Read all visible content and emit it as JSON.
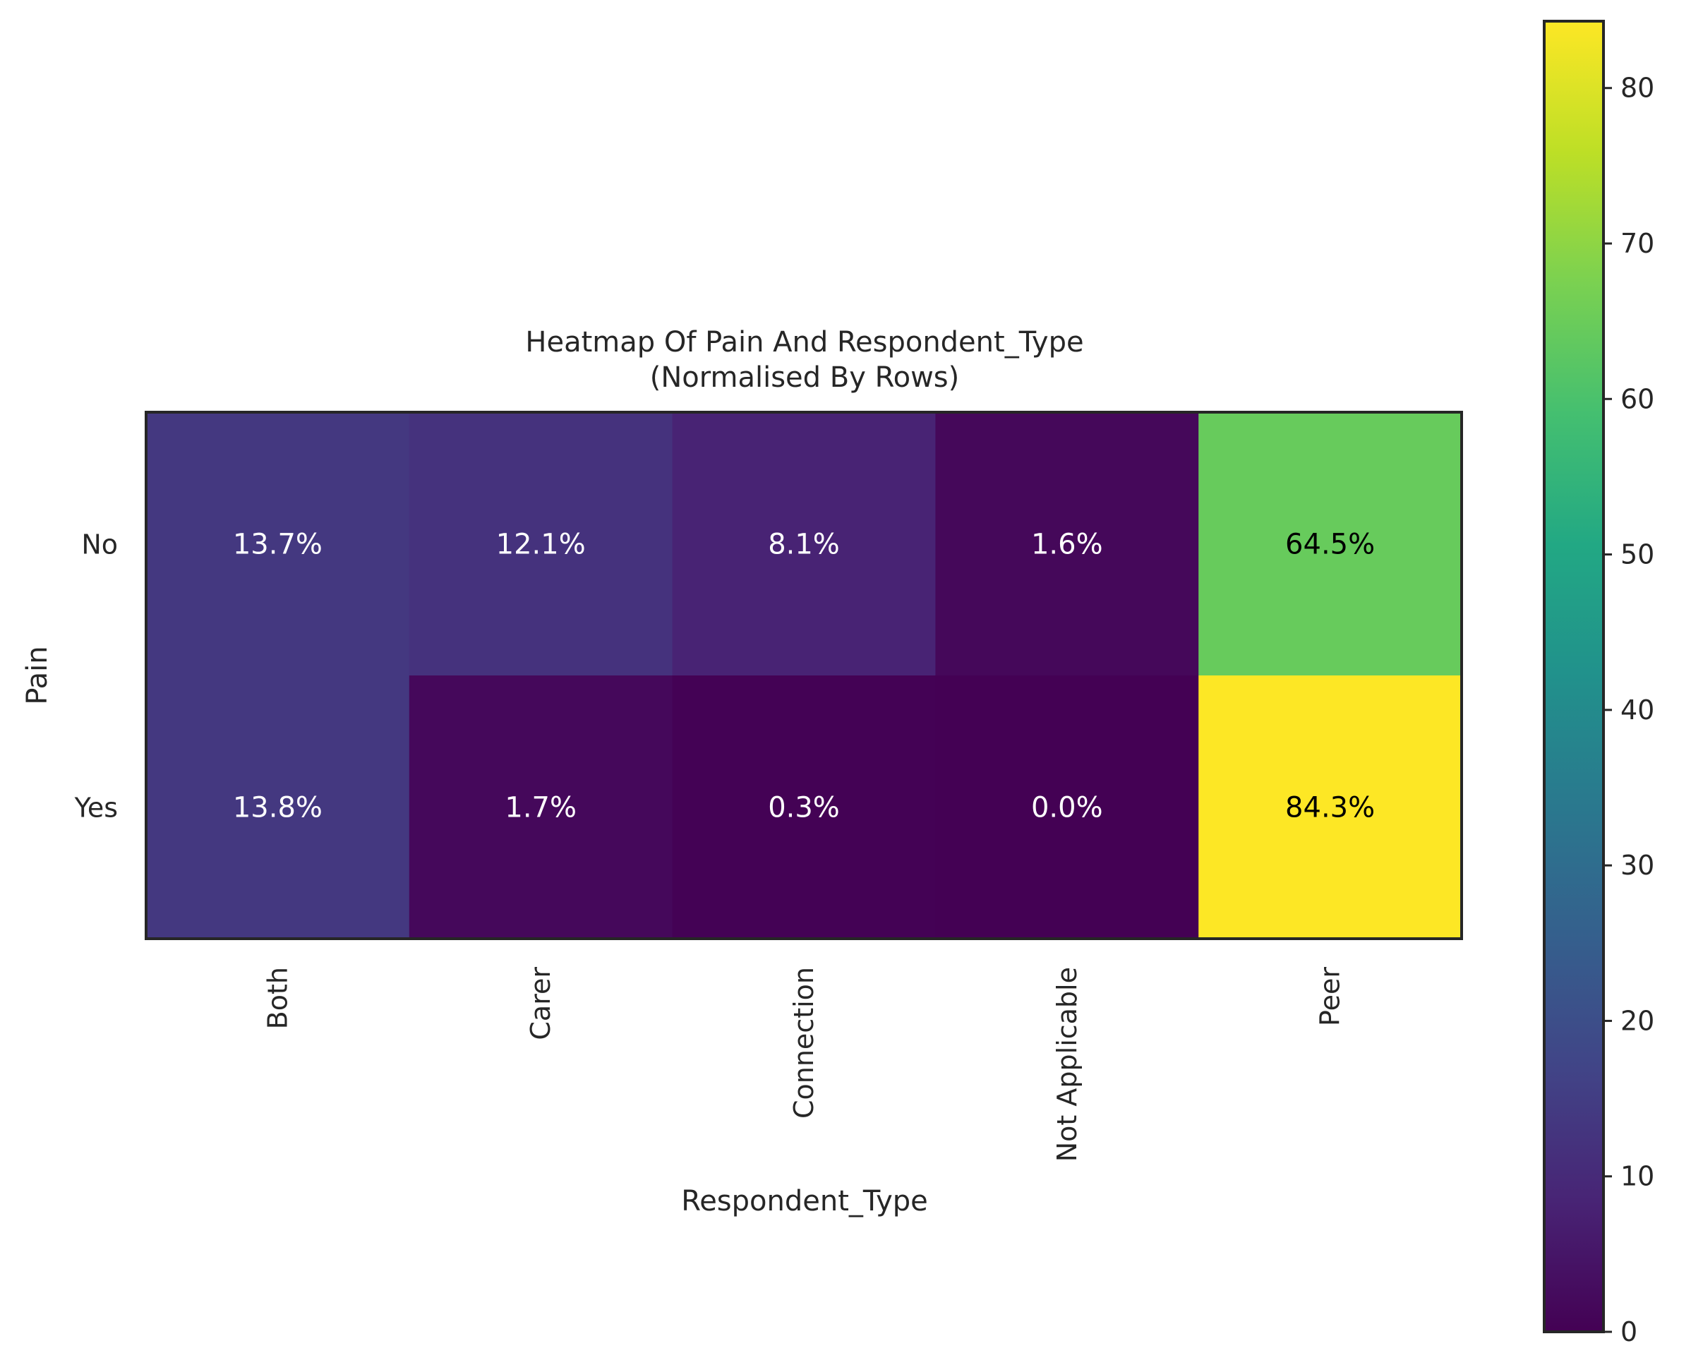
{
  "chart_data": {
    "type": "heatmap",
    "title_lines": [
      "Heatmap Of Pain And Respondent_Type",
      "(Normalised By Rows)"
    ],
    "xlabel": "Respondent_Type",
    "ylabel": "Pain",
    "x_categories": [
      "Both",
      "Carer",
      "Connection",
      "Not Applicable",
      "Peer"
    ],
    "y_categories": [
      "No",
      "Yes"
    ],
    "values": [
      [
        13.7,
        12.1,
        8.1,
        1.6,
        64.5
      ],
      [
        13.8,
        1.7,
        0.3,
        0.0,
        84.3
      ]
    ],
    "cell_labels": [
      [
        "13.7%",
        "12.1%",
        "8.1%",
        "1.6%",
        "64.5%"
      ],
      [
        "13.8%",
        "1.7%",
        "0.3%",
        "0.0%",
        "84.3%"
      ]
    ],
    "colormap": "viridis",
    "colorbar": {
      "vmin": 0,
      "vmax": 84.3,
      "ticks": [
        0,
        10,
        20,
        30,
        40,
        50,
        60,
        70,
        80
      ]
    },
    "annotation_text_colors": {
      "on_dark": "#ffffff",
      "on_light": "#000000"
    }
  }
}
